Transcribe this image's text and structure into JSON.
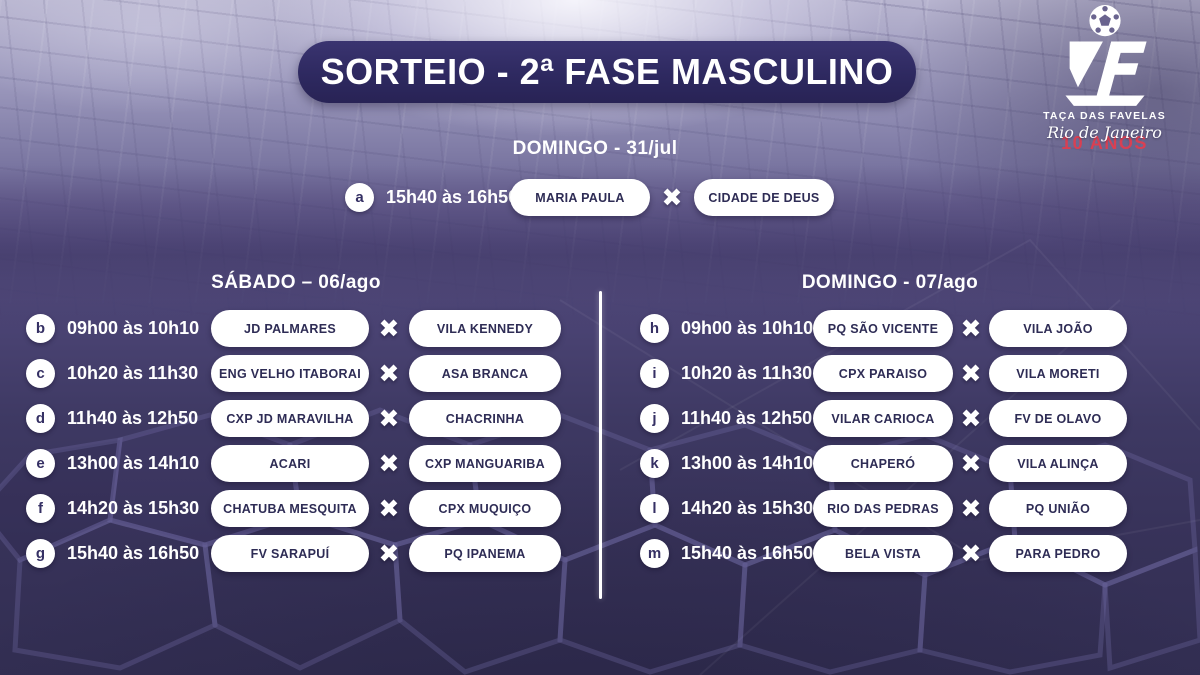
{
  "title": {
    "text": "SORTEIO - 2ª FASE MASCULINO"
  },
  "logo": {
    "wordmark": "TAÇA DAS FAVELAS",
    "region": "Rio de Janeiro",
    "anniversary": "10 ANOS",
    "accent_red": "#d84053"
  },
  "versus": "✖",
  "colors": {
    "banner": "#2e2960",
    "pill_text": "#2e2c55",
    "background_dark": "#332e52",
    "divider": "#ffffff"
  },
  "sections": [
    {
      "heading": "DOMINGO - 31/jul",
      "matches": [
        {
          "letter": "a",
          "time": "15h40 às 16h50",
          "home": "MARIA PAULA",
          "away": "CIDADE DE DEUS"
        }
      ]
    },
    {
      "heading": "SÁBADO – 06/ago",
      "matches": [
        {
          "letter": "b",
          "time": "09h00 às 10h10",
          "home": "JD PALMARES",
          "away": "VILA KENNEDY"
        },
        {
          "letter": "c",
          "time": "10h20 às 11h30",
          "home": "ENG VELHO ITABORAI",
          "away": "ASA BRANCA"
        },
        {
          "letter": "d",
          "time": "11h40 às 12h50",
          "home": "CXP JD MARAVILHA",
          "away": "CHACRINHA"
        },
        {
          "letter": "e",
          "time": "13h00 às 14h10",
          "home": "ACARI",
          "away": "CXP MANGUARIBA"
        },
        {
          "letter": "f",
          "time": "14h20 às 15h30",
          "home": "CHATUBA MESQUITA",
          "away": "CPX MUQUIÇO"
        },
        {
          "letter": "g",
          "time": "15h40 às 16h50",
          "home": "FV SARAPUÍ",
          "away": "PQ IPANEMA"
        }
      ]
    },
    {
      "heading": "DOMINGO - 07/ago",
      "matches": [
        {
          "letter": "h",
          "time": "09h00 às 10h10",
          "home": "PQ SÃO VICENTE",
          "away": "VILA JOÃO"
        },
        {
          "letter": "i",
          "time": "10h20 às 11h30",
          "home": "CPX PARAISO",
          "away": "VILA MORETI"
        },
        {
          "letter": "j",
          "time": "11h40 às 12h50",
          "home": "VILAR CARIOCA",
          "away": "FV DE OLAVO"
        },
        {
          "letter": "k",
          "time": "13h00 às 14h10",
          "home": "CHAPERÓ",
          "away": "VILA ALINÇA"
        },
        {
          "letter": "l",
          "time": "14h20 às 15h30",
          "home": "RIO DAS PEDRAS",
          "away": "PQ UNIÃO"
        },
        {
          "letter": "m",
          "time": "15h40 às 16h50",
          "home": "BELA VISTA",
          "away": "PARA PEDRO"
        }
      ]
    }
  ]
}
